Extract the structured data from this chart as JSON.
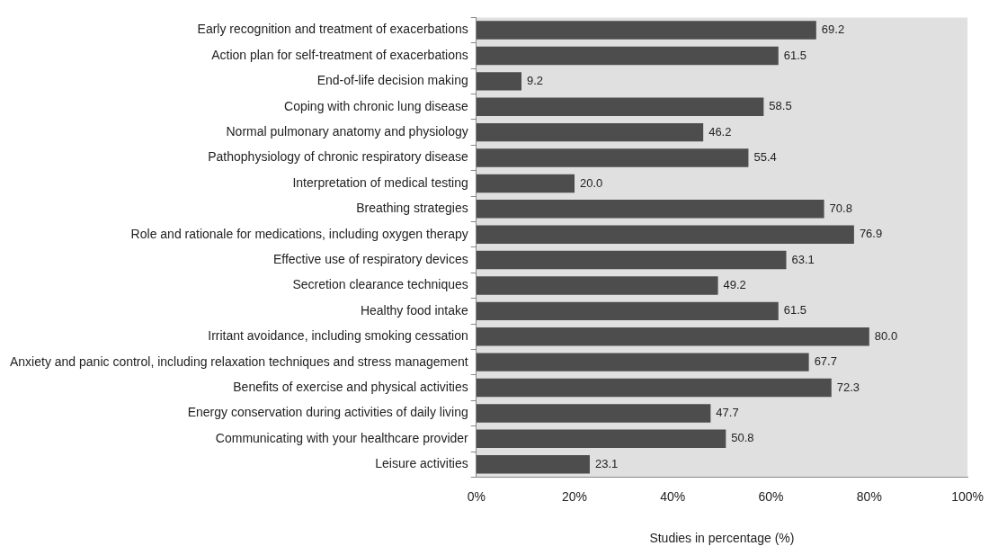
{
  "chart_data": {
    "type": "bar",
    "orientation": "horizontal",
    "xlabel": "Studies in percentage (%)",
    "categories": [
      "Early recognition and treatment of exacerbations",
      "Action plan for self-treatment of exacerbations",
      "End-of-life decision making",
      "Coping with chronic lung disease",
      "Normal pulmonary anatomy and physiology",
      "Pathophysiology of chronic respiratory disease",
      "Interpretation of medical testing",
      "Breathing strategies",
      "Role and rationale for medications, including oxygen therapy",
      "Effective use of respiratory devices",
      "Secretion clearance techniques",
      "Healthy food intake",
      "Irritant avoidance, including smoking cessation",
      "Anxiety and panic control, including relaxation techniques and stress management",
      "Benefits of exercise and physical activities",
      "Energy conservation during activities of daily living",
      "Communicating with your healthcare provider",
      "Leisure activities"
    ],
    "values": [
      69.2,
      61.5,
      9.2,
      58.5,
      46.2,
      55.4,
      20.0,
      70.8,
      76.9,
      63.1,
      49.2,
      61.5,
      80.0,
      67.7,
      72.3,
      47.7,
      50.8,
      23.1
    ],
    "value_labels": [
      "69.2",
      "61.5",
      "9.2",
      "58.5",
      "46.2",
      "55.4",
      "20.0",
      "70.8",
      "76.9",
      "63.1",
      "49.2",
      "61.5",
      "80.0",
      "67.7",
      "72.3",
      "47.7",
      "50.8",
      "23.1"
    ],
    "color": "#4d4d4d",
    "xlim": [
      0,
      100
    ],
    "xticks": [
      {
        "value": 0,
        "label": "0%"
      },
      {
        "value": 20,
        "label": "20%"
      },
      {
        "value": 40,
        "label": "40%"
      },
      {
        "value": 60,
        "label": "60%"
      },
      {
        "value": 80,
        "label": "80%"
      },
      {
        "value": 100,
        "label": "100%"
      }
    ]
  }
}
